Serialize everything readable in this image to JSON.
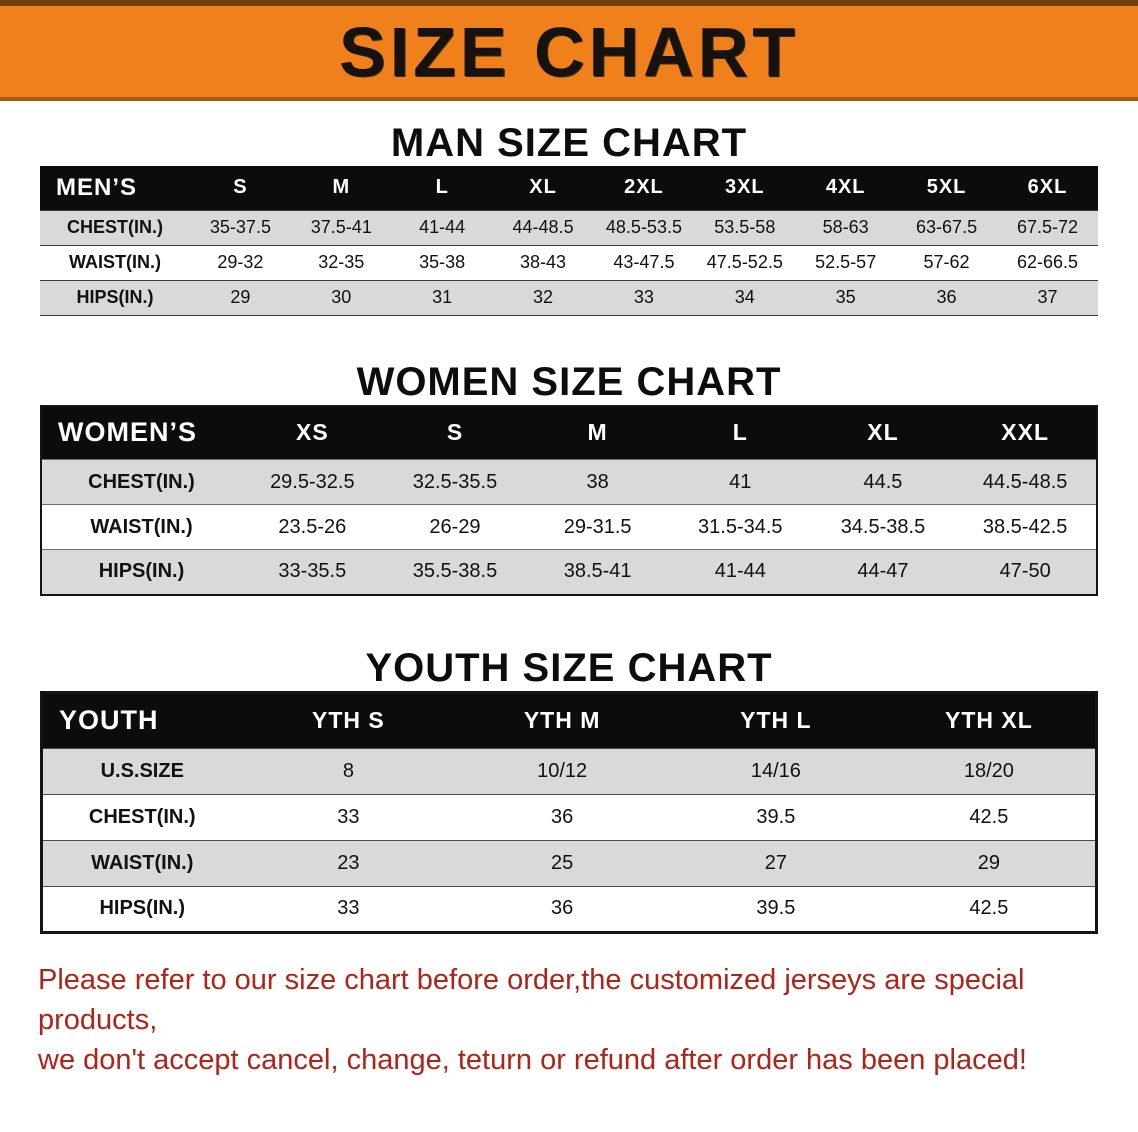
{
  "banner": {
    "title": "SIZE CHART"
  },
  "colors": {
    "banner_bg": "#f0801c",
    "table_header_bg": "#0c0c0c",
    "row_stripe": "#d9d9d9",
    "footer_text": "#b02418"
  },
  "chart_data": [
    {
      "type": "table",
      "title": "MAN SIZE CHART",
      "columns": [
        "MEN’S",
        "S",
        "M",
        "L",
        "XL",
        "2XL",
        "3XL",
        "4XL",
        "5XL",
        "6XL"
      ],
      "rows": [
        [
          "CHEST(IN.)",
          "35-37.5",
          "37.5-41",
          "41-44",
          "44-48.5",
          "48.5-53.5",
          "53.5-58",
          "58-63",
          "63-67.5",
          "67.5-72"
        ],
        [
          "WAIST(IN.)",
          "29-32",
          "32-35",
          "35-38",
          "38-43",
          "43-47.5",
          "47.5-52.5",
          "52.5-57",
          "57-62",
          "62-66.5"
        ],
        [
          "HIPS(IN.)",
          "29",
          "30",
          "31",
          "32",
          "33",
          "34",
          "35",
          "36",
          "37"
        ]
      ]
    },
    {
      "type": "table",
      "title": "WOMEN SIZE CHART",
      "columns": [
        "WOMEN’S",
        "XS",
        "S",
        "M",
        "L",
        "XL",
        "XXL"
      ],
      "rows": [
        [
          "CHEST(IN.)",
          "29.5-32.5",
          "32.5-35.5",
          "38",
          "41",
          "44.5",
          "44.5-48.5"
        ],
        [
          "WAIST(IN.)",
          "23.5-26",
          "26-29",
          "29-31.5",
          "31.5-34.5",
          "34.5-38.5",
          "38.5-42.5"
        ],
        [
          "HIPS(IN.)",
          "33-35.5",
          "35.5-38.5",
          "38.5-41",
          "41-44",
          "44-47",
          "47-50"
        ]
      ]
    },
    {
      "type": "table",
      "title": "YOUTH SIZE CHART",
      "columns": [
        "YOUTH",
        "YTH S",
        "YTH M",
        "YTH L",
        "YTH XL"
      ],
      "rows": [
        [
          "U.S.SIZE",
          "8",
          "10/12",
          "14/16",
          "18/20"
        ],
        [
          "CHEST(IN.)",
          "33",
          "36",
          "39.5",
          "42.5"
        ],
        [
          "WAIST(IN.)",
          "23",
          "25",
          "27",
          "29"
        ],
        [
          "HIPS(IN.)",
          "33",
          "36",
          "39.5",
          "42.5"
        ]
      ]
    }
  ],
  "footer": {
    "lines": [
      "Please refer to our size chart before order,the customized jerseys are special products,",
      "we don't accept cancel, change, teturn or refund after order has been placed!"
    ]
  }
}
